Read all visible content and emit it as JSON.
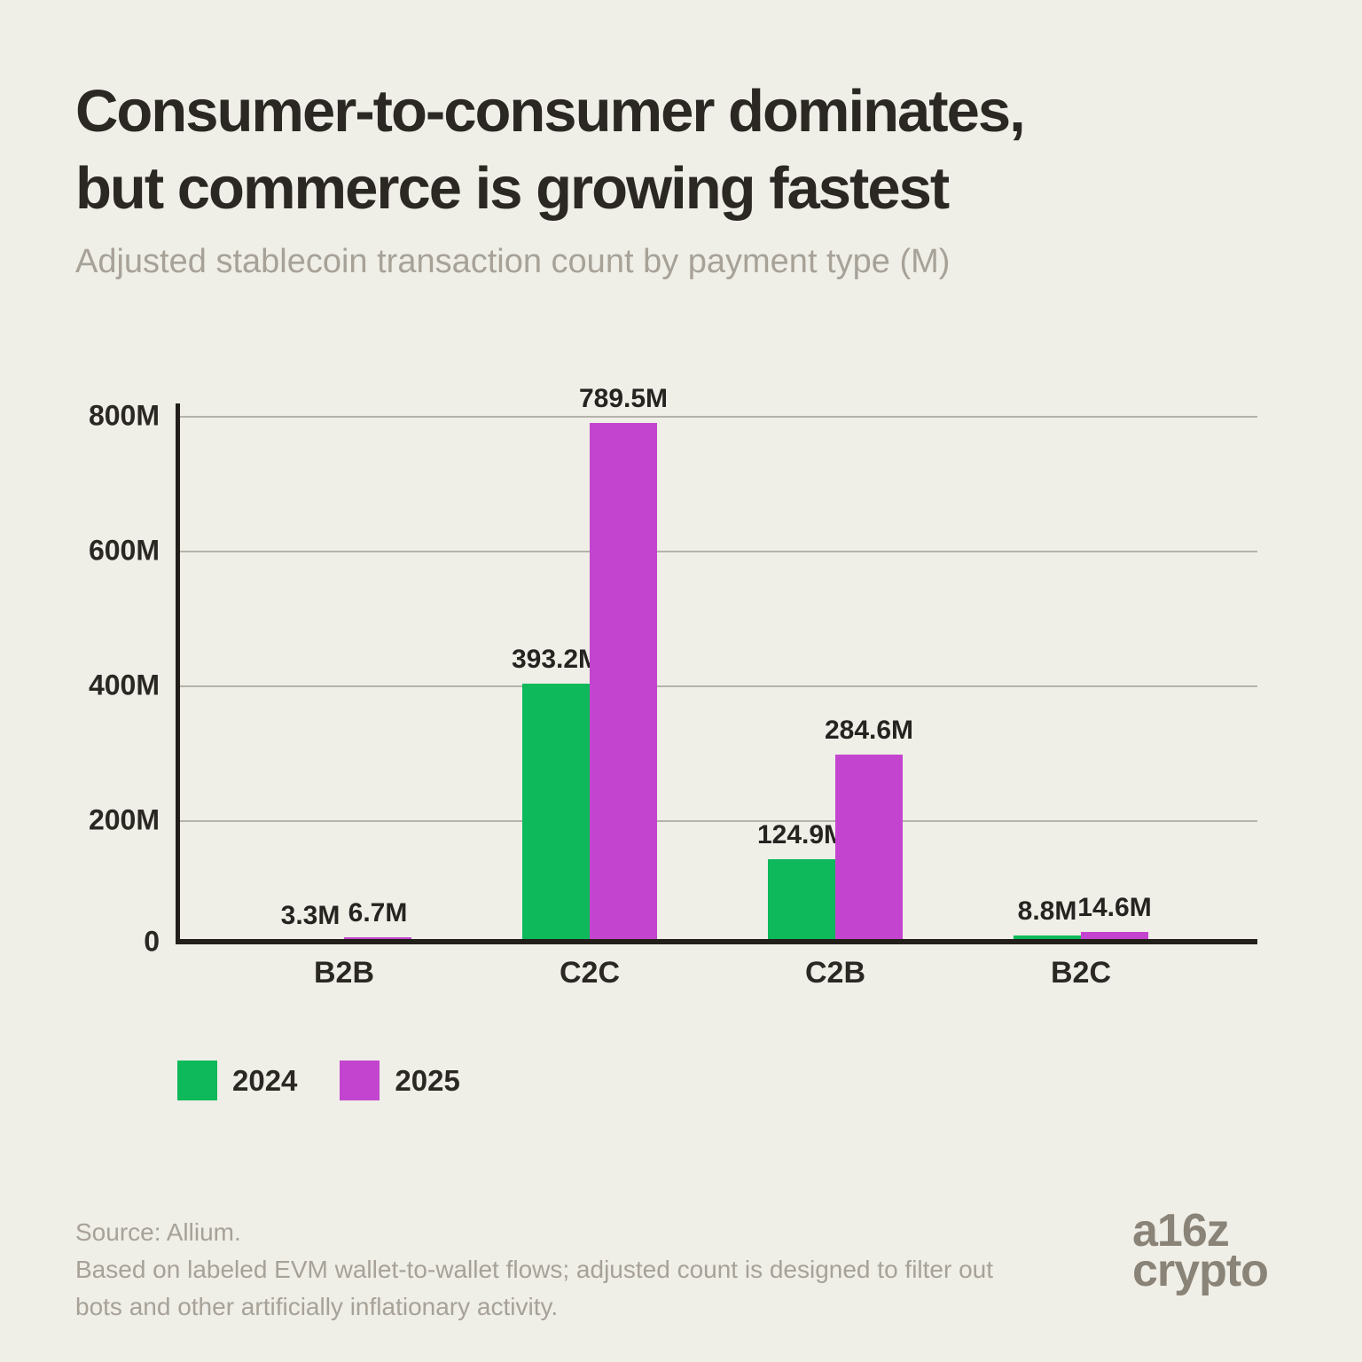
{
  "header": {
    "title_line1": "Consumer-to-consumer dominates,",
    "title_line2": "but commerce is growing fastest",
    "subtitle": "Adjusted stablecoin transaction count by payment type (M)"
  },
  "chart_data": {
    "type": "bar",
    "title": "Consumer-to-consumer dominates, but commerce is growing fastest",
    "subtitle": "Adjusted stablecoin transaction count by payment type (M)",
    "categories": [
      "B2B",
      "C2C",
      "C2B",
      "B2C"
    ],
    "series": [
      {
        "name": "2024",
        "color": "#0db95a",
        "values": [
          3.3,
          393.2,
          124.9,
          8.8
        ],
        "labels": [
          "3.3M",
          "393.2M",
          "124.9M",
          "8.8M"
        ]
      },
      {
        "name": "2025",
        "color": "#c345cf",
        "values": [
          6.7,
          789.5,
          284.6,
          14.6
        ],
        "labels": [
          "6.7M",
          "789.5M",
          "284.6M",
          "14.6M"
        ]
      }
    ],
    "xlabel": "",
    "ylabel": "",
    "ylim": [
      0,
      800
    ],
    "ytick_labels": [
      "800M",
      "600M",
      "400M",
      "200M",
      "0"
    ],
    "grid": "horizontal",
    "legend_position": "bottom-left"
  },
  "legend": {
    "items": [
      {
        "label": "2024",
        "color": "#0db95a"
      },
      {
        "label": "2025",
        "color": "#c345cf"
      }
    ]
  },
  "footer": {
    "source_line1": "Source: Allium.",
    "source_line2": "Based on labeled EVM wallet-to-wallet flows; adjusted count is designed to filter out",
    "source_line3": "bots and other artificially inflationary activity.",
    "logo_line1": "a16z",
    "logo_line2": "crypto"
  },
  "colors": {
    "background": "#efeee7",
    "title_text": "#2b2824",
    "subtitle_text": "#a7a298",
    "axis": "#221f1b",
    "gridline": "#b5b2a9",
    "bar_2024": "#0db95a",
    "bar_2025": "#c345cf",
    "source_text": "#a7a298",
    "logo_text": "#8a8377"
  }
}
